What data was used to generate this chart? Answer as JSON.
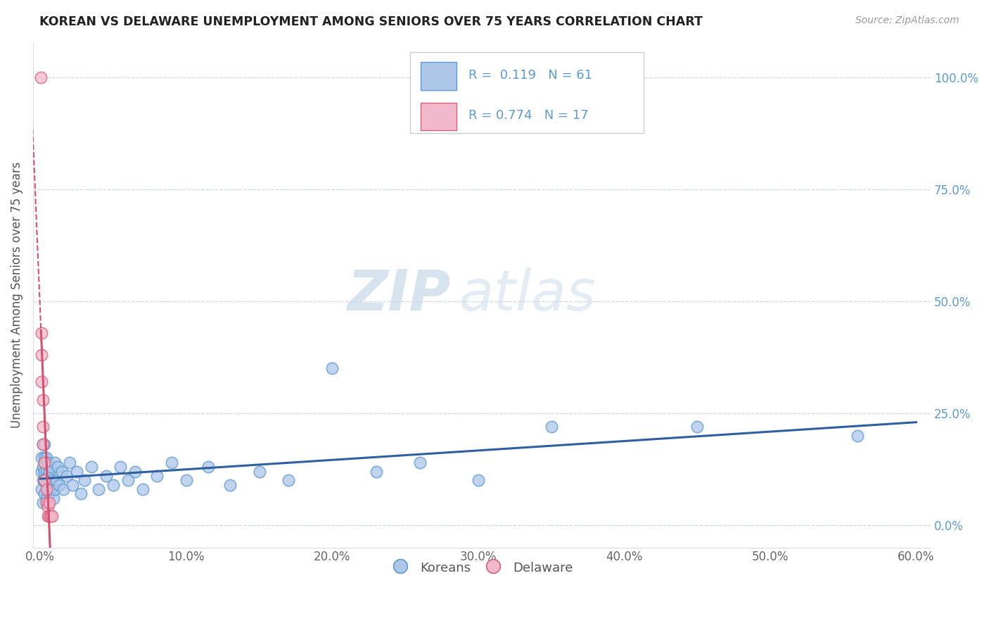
{
  "title": "KOREAN VS DELAWARE UNEMPLOYMENT AMONG SENIORS OVER 75 YEARS CORRELATION CHART",
  "source": "Source: ZipAtlas.com",
  "ylabel": "Unemployment Among Seniors over 75 years",
  "xlim": [
    -0.005,
    0.61
  ],
  "ylim": [
    -0.05,
    1.08
  ],
  "xticks": [
    0.0,
    0.1,
    0.2,
    0.3,
    0.4,
    0.5,
    0.6
  ],
  "xtick_labels": [
    "0.0%",
    "10.0%",
    "20.0%",
    "30.0%",
    "40.0%",
    "50.0%",
    "60.0%"
  ],
  "yticks": [
    0.0,
    0.25,
    0.5,
    0.75,
    1.0
  ],
  "ytick_labels": [
    "0.0%",
    "25.0%",
    "50.0%",
    "75.0%",
    "100.0%"
  ],
  "korean_color": "#aec6e8",
  "korean_edge": "#5b9bd5",
  "delaware_color": "#f2b8cb",
  "delaware_edge": "#d9607a",
  "trend_korean_color": "#2e5fa3",
  "trend_delaware_color": "#d94f6e",
  "watermark_zip": "ZIP",
  "watermark_atlas": "atlas",
  "legend_R_korean": "0.119",
  "legend_N_korean": "61",
  "legend_R_delaware": "0.774",
  "legend_N_delaware": "17",
  "korean_x": [
    0.001,
    0.001,
    0.001,
    0.002,
    0.002,
    0.002,
    0.002,
    0.003,
    0.003,
    0.003,
    0.003,
    0.003,
    0.004,
    0.004,
    0.004,
    0.004,
    0.005,
    0.005,
    0.005,
    0.005,
    0.006,
    0.006,
    0.007,
    0.007,
    0.008,
    0.009,
    0.01,
    0.01,
    0.011,
    0.012,
    0.013,
    0.015,
    0.016,
    0.018,
    0.02,
    0.022,
    0.025,
    0.028,
    0.03,
    0.035,
    0.04,
    0.045,
    0.05,
    0.055,
    0.06,
    0.065,
    0.07,
    0.08,
    0.09,
    0.1,
    0.115,
    0.13,
    0.15,
    0.17,
    0.2,
    0.23,
    0.26,
    0.3,
    0.35,
    0.45,
    0.56
  ],
  "korean_y": [
    0.08,
    0.12,
    0.15,
    0.05,
    0.1,
    0.13,
    0.18,
    0.07,
    0.1,
    0.12,
    0.15,
    0.18,
    0.06,
    0.09,
    0.12,
    0.15,
    0.05,
    0.08,
    0.11,
    0.14,
    0.07,
    0.12,
    0.08,
    0.13,
    0.1,
    0.06,
    0.08,
    0.14,
    0.1,
    0.13,
    0.09,
    0.12,
    0.08,
    0.11,
    0.14,
    0.09,
    0.12,
    0.07,
    0.1,
    0.13,
    0.08,
    0.11,
    0.09,
    0.13,
    0.1,
    0.12,
    0.08,
    0.11,
    0.14,
    0.1,
    0.13,
    0.09,
    0.12,
    0.1,
    0.35,
    0.12,
    0.14,
    0.1,
    0.22,
    0.22,
    0.2
  ],
  "delaware_x": [
    0.0005,
    0.0008,
    0.001,
    0.001,
    0.002,
    0.002,
    0.002,
    0.003,
    0.003,
    0.004,
    0.004,
    0.005,
    0.005,
    0.006,
    0.006,
    0.007,
    0.008
  ],
  "delaware_y": [
    1.0,
    0.43,
    0.38,
    0.32,
    0.28,
    0.22,
    0.18,
    0.14,
    0.1,
    0.08,
    0.05,
    0.04,
    0.02,
    0.02,
    0.05,
    0.02,
    0.02
  ]
}
